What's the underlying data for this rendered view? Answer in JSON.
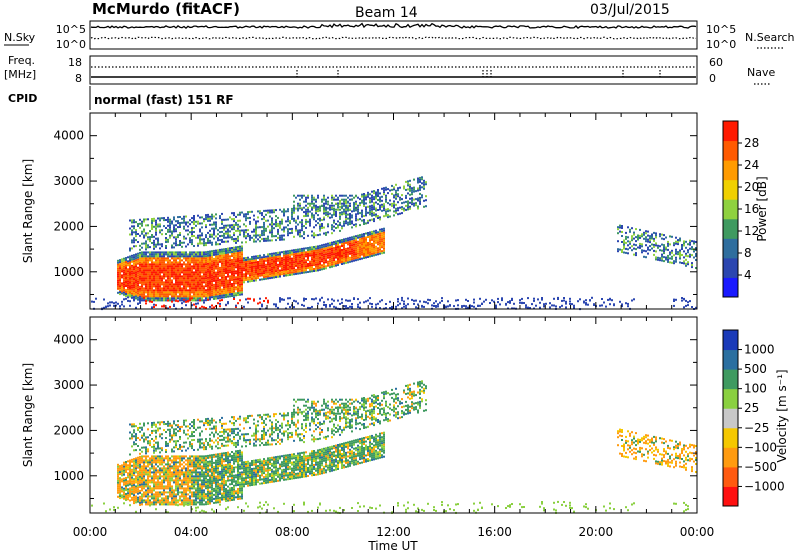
{
  "header": {
    "site": "McMurdo (fitACF)",
    "beam": "Beam 14",
    "date": "03/Jul/2015"
  },
  "sky_panel": {
    "left_label": "N.Sky",
    "right_label": "N.Search",
    "left_ticks": [
      "10^5",
      "10^0"
    ],
    "right_ticks": [
      "10^5",
      "10^0"
    ]
  },
  "freq_panel": {
    "left_label_line1": "Freq.",
    "left_label_line2": "[MHz]",
    "left_ticks": [
      "18",
      "8"
    ],
    "right_label": "Nave",
    "right_ticks": [
      "60",
      "0"
    ]
  },
  "cpid": {
    "label": "CPID",
    "value": "normal (fast) 151 RF"
  },
  "colors": {
    "axis": "#000000",
    "power_scale": [
      "#1a1aff",
      "#2b46b0",
      "#2f6e9e",
      "#3f9a60",
      "#8fd13f",
      "#f0d000",
      "#ff9b00",
      "#ff5a00",
      "#ff1a00"
    ],
    "velocity_scale": [
      "#ff1010",
      "#ff5a10",
      "#ff9b10",
      "#f5c800",
      "#c8c8c8",
      "#8ad040",
      "#3f9a60",
      "#2b6fa0",
      "#1a3ab8"
    ]
  },
  "chart_data": [
    {
      "type": "heatmap",
      "name": "power",
      "xlabel": "",
      "ylabel": "Slant Range [km]",
      "x_range_hours": [
        0,
        24
      ],
      "ylim": [
        180,
        4500
      ],
      "yticks": [
        "4000",
        "3000",
        "2000",
        "1000"
      ],
      "yticks_values": [
        4000,
        3000,
        2000,
        1000
      ],
      "colorbar": {
        "label": "Power [dB]",
        "ticks": [
          "28",
          "24",
          "20",
          "16",
          "12",
          "8",
          "4"
        ],
        "range": [
          0,
          32
        ]
      }
    },
    {
      "type": "heatmap",
      "name": "velocity",
      "xlabel": "Time UT",
      "ylabel": "Slant Range [km]",
      "x_range_hours": [
        0,
        24
      ],
      "xticks": [
        "00:00",
        "04:00",
        "08:00",
        "12:00",
        "16:00",
        "20:00",
        "00:00"
      ],
      "xticks_values": [
        0,
        4,
        8,
        12,
        16,
        20,
        24
      ],
      "ylim": [
        180,
        4500
      ],
      "yticks": [
        "4000",
        "3000",
        "2000",
        "1000"
      ],
      "yticks_values": [
        4000,
        3000,
        2000,
        1000
      ],
      "colorbar": {
        "label": "Velocity [m s⁻¹]",
        "ticks": [
          "1000",
          "500",
          "100",
          "25",
          "−25",
          "−100",
          "−500",
          "−1000"
        ]
      }
    }
  ]
}
